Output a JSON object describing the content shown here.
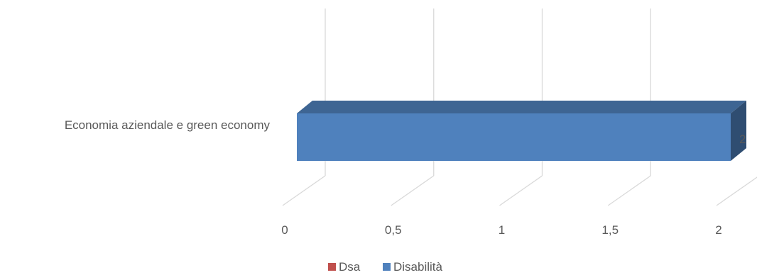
{
  "chart_data": {
    "type": "bar",
    "orientation": "horizontal",
    "three_d": true,
    "categories": [
      "Economia aziendale e green economy"
    ],
    "series": [
      {
        "name": "Dsa",
        "values": [
          0
        ],
        "color": "#C0504D"
      },
      {
        "name": "Disabilità",
        "values": [
          2
        ],
        "color": "#4F81BD"
      }
    ],
    "x_ticks": [
      "0",
      "0,5",
      "1",
      "1,5",
      "2"
    ],
    "xlim": [
      0,
      2
    ],
    "data_labels": [
      "2"
    ],
    "grid": true,
    "legend_position": "bottom"
  }
}
